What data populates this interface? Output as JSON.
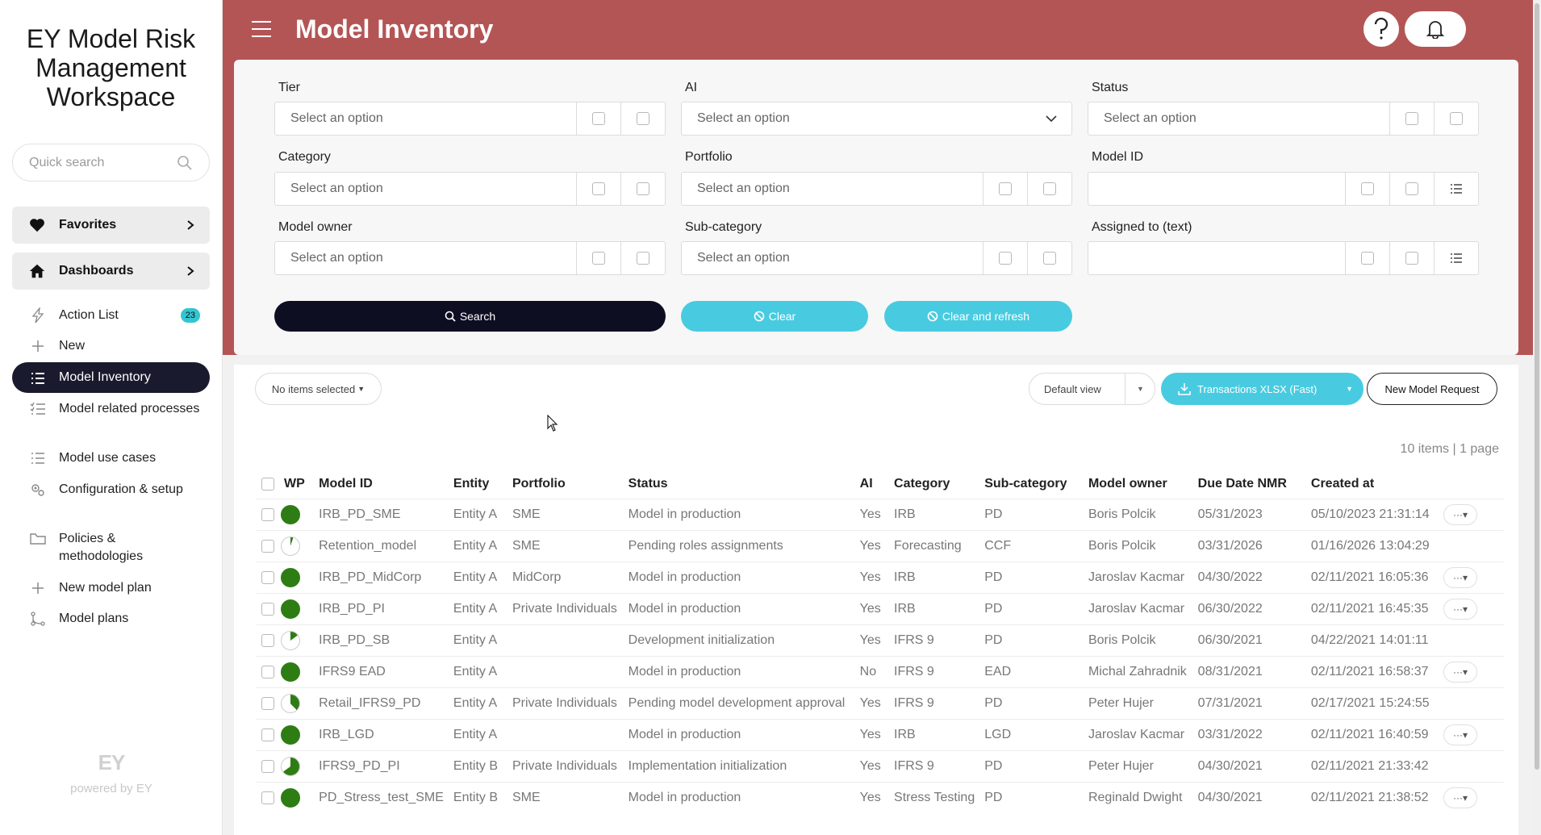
{
  "sidebar": {
    "app_title": "EY Model Risk Management Workspace",
    "search_placeholder": "Quick search",
    "groups": [
      {
        "label": "Favorites",
        "icon": "heart-icon"
      },
      {
        "label": "Dashboards",
        "icon": "home-icon"
      }
    ],
    "items": [
      {
        "label": "Action List",
        "icon": "bolt-icon",
        "badge": "23"
      },
      {
        "label": "New",
        "icon": "plus-icon"
      },
      {
        "label": "Model Inventory",
        "icon": "list-icon",
        "active": true
      },
      {
        "label": "Model related processes",
        "icon": "checklist-icon"
      },
      {
        "label": "Model use cases",
        "icon": "list-icon"
      },
      {
        "label": "Configuration & setup",
        "icon": "gears-icon"
      },
      {
        "label": "Policies & methodologies",
        "icon": "folder-icon"
      },
      {
        "label": "New model plan",
        "icon": "plus-icon"
      },
      {
        "label": "Model plans",
        "icon": "branch-icon"
      }
    ],
    "logo_text": "EY",
    "powered_by": "powered by EY"
  },
  "header": {
    "title": "Model Inventory",
    "help_icon": "help-icon",
    "bell_icon": "bell-icon"
  },
  "filters": {
    "tier": {
      "label": "Tier",
      "placeholder": "Select an option"
    },
    "ai": {
      "label": "AI",
      "placeholder": "Select an option"
    },
    "status": {
      "label": "Status",
      "placeholder": "Select an option"
    },
    "category": {
      "label": "Category",
      "placeholder": "Select an option"
    },
    "portfolio": {
      "label": "Portfolio",
      "placeholder": "Select an option"
    },
    "model_id": {
      "label": "Model ID",
      "placeholder": ""
    },
    "model_owner": {
      "label": "Model owner",
      "placeholder": "Select an option"
    },
    "sub_category": {
      "label": "Sub-category",
      "placeholder": "Select an option"
    },
    "assigned_to": {
      "label": "Assigned to (text)",
      "placeholder": ""
    },
    "search_label": "Search",
    "clear_label": "Clear",
    "clear_refresh_label": "Clear and refresh"
  },
  "toolbar": {
    "selection": "No items selected",
    "view": "Default view",
    "export": "Transactions XLSX (Fast)",
    "new_request": "New Model Request",
    "items_info": "10 items | 1 page"
  },
  "table": {
    "columns": [
      "WP",
      "Model ID",
      "Entity",
      "Portfolio",
      "Status",
      "AI",
      "Category",
      "Sub-category",
      "Model owner",
      "Due Date NMR",
      "Created at"
    ],
    "rows": [
      {
        "progress": 1.0,
        "model_id": "IRB_PD_SME",
        "entity": "Entity A",
        "portfolio": "SME",
        "status": "Model in production",
        "ai": "Yes",
        "category": "IRB",
        "sub_category": "PD",
        "owner": "Boris Polcik",
        "due": "05/31/2023",
        "created": "05/10/2023 21:31:14",
        "menu": true
      },
      {
        "progress": 0.05,
        "model_id": "Retention_model",
        "entity": "Entity A",
        "portfolio": "SME",
        "status": "Pending roles assignments",
        "ai": "Yes",
        "category": "Forecasting",
        "sub_category": "CCF",
        "owner": "Boris Polcik",
        "due": "03/31/2026",
        "created": "01/16/2026 13:04:29",
        "menu": false
      },
      {
        "progress": 1.0,
        "model_id": "IRB_PD_MidCorp",
        "entity": "Entity A",
        "portfolio": "MidCorp",
        "status": "Model in production",
        "ai": "Yes",
        "category": "IRB",
        "sub_category": "PD",
        "owner": "Jaroslav Kacmar",
        "due": "04/30/2022",
        "created": "02/11/2021 16:05:36",
        "menu": true
      },
      {
        "progress": 1.0,
        "model_id": "IRB_PD_PI",
        "entity": "Entity A",
        "portfolio": "Private Individuals",
        "status": "Model in production",
        "ai": "Yes",
        "category": "IRB",
        "sub_category": "PD",
        "owner": "Jaroslav Kacmar",
        "due": "06/30/2022",
        "created": "02/11/2021 16:45:35",
        "menu": true
      },
      {
        "progress": 0.15,
        "model_id": "IRB_PD_SB",
        "entity": "Entity A",
        "portfolio": "",
        "status": "Development initialization",
        "ai": "Yes",
        "category": "IFRS 9",
        "sub_category": "PD",
        "owner": "Boris Polcik",
        "due": "06/30/2021",
        "created": "04/22/2021 14:01:11",
        "menu": false
      },
      {
        "progress": 1.0,
        "model_id": "IFRS9 EAD",
        "entity": "Entity A",
        "portfolio": "",
        "status": "Model in production",
        "ai": "No",
        "category": "IFRS 9",
        "sub_category": "EAD",
        "owner": "Michal Zahradnik",
        "due": "08/31/2021",
        "created": "02/11/2021 16:58:37",
        "menu": true
      },
      {
        "progress": 0.38,
        "model_id": "Retail_IFRS9_PD",
        "entity": "Entity A",
        "portfolio": "Private Individuals",
        "status": "Pending model development approval",
        "ai": "Yes",
        "category": "IFRS 9",
        "sub_category": "PD",
        "owner": "Peter Hujer",
        "due": "07/31/2021",
        "created": "02/17/2021 15:24:55",
        "menu": false
      },
      {
        "progress": 1.0,
        "model_id": "IRB_LGD",
        "entity": "Entity A",
        "portfolio": "",
        "status": "Model in production",
        "ai": "Yes",
        "category": "IRB",
        "sub_category": "LGD",
        "owner": "Jaroslav Kacmar",
        "due": "03/31/2022",
        "created": "02/11/2021 16:40:59",
        "menu": true
      },
      {
        "progress": 0.65,
        "model_id": "IFRS9_PD_PI",
        "entity": "Entity B",
        "portfolio": "Private Individuals",
        "status": "Implementation initialization",
        "ai": "Yes",
        "category": "IFRS 9",
        "sub_category": "PD",
        "owner": "Peter Hujer",
        "due": "04/30/2021",
        "created": "02/11/2021 21:33:42",
        "menu": false
      },
      {
        "progress": 1.0,
        "model_id": "PD_Stress_test_SME",
        "entity": "Entity B",
        "portfolio": "SME",
        "status": "Model in production",
        "ai": "Yes",
        "category": "Stress Testing",
        "sub_category": "PD",
        "owner": "Reginald Dwight",
        "due": "04/30/2021",
        "created": "02/11/2021 21:38:52",
        "menu": true
      }
    ],
    "row_menu_label": "···"
  },
  "colors": {
    "header": "#b45555",
    "accent": "#48cbe0",
    "dark": "#0e0e23",
    "progress": "#2e7d14"
  }
}
